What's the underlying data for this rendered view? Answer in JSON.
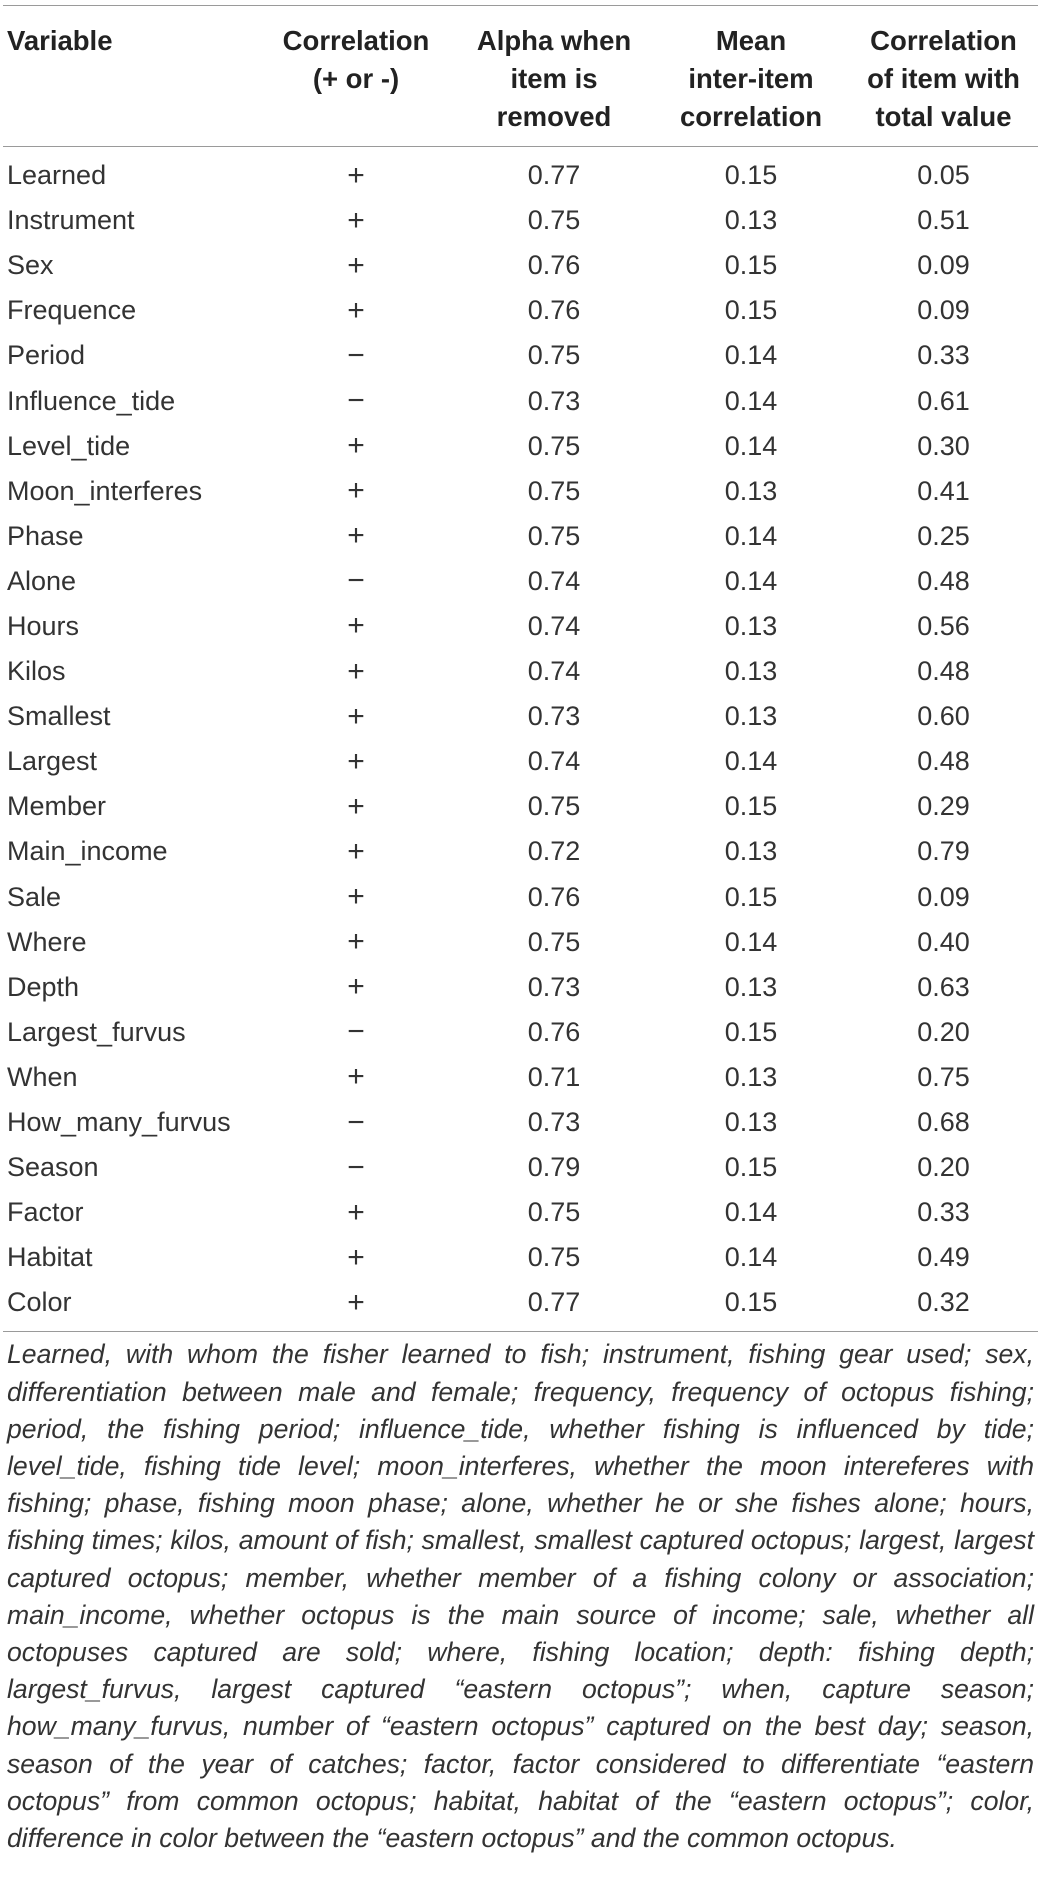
{
  "table": {
    "headers": [
      "Variable",
      "Correlation\n(+ or -)",
      "Alpha when\nitem is\nremoved",
      "Mean\ninter-item\ncorrelation",
      "Correlation\nof item with\ntotal value"
    ],
    "rows": [
      [
        "Learned",
        "+",
        "0.77",
        "0.15",
        "0.05"
      ],
      [
        "Instrument",
        "+",
        "0.75",
        "0.13",
        "0.51"
      ],
      [
        "Sex",
        "+",
        "0.76",
        "0.15",
        "0.09"
      ],
      [
        "Frequence",
        "+",
        "0.76",
        "0.15",
        "0.09"
      ],
      [
        "Period",
        "−",
        "0.75",
        "0.14",
        "0.33"
      ],
      [
        "Influence_tide",
        "−",
        "0.73",
        "0.14",
        "0.61"
      ],
      [
        "Level_tide",
        "+",
        "0.75",
        "0.14",
        "0.30"
      ],
      [
        "Moon_interferes",
        "+",
        "0.75",
        "0.13",
        "0.41"
      ],
      [
        "Phase",
        "+",
        "0.75",
        "0.14",
        "0.25"
      ],
      [
        "Alone",
        "−",
        "0.74",
        "0.14",
        "0.48"
      ],
      [
        "Hours",
        "+",
        "0.74",
        "0.13",
        "0.56"
      ],
      [
        "Kilos",
        "+",
        "0.74",
        "0.13",
        "0.48"
      ],
      [
        "Smallest",
        "+",
        "0.73",
        "0.13",
        "0.60"
      ],
      [
        "Largest",
        "+",
        "0.74",
        "0.14",
        "0.48"
      ],
      [
        "Member",
        "+",
        "0.75",
        "0.15",
        "0.29"
      ],
      [
        "Main_income",
        "+",
        "0.72",
        "0.13",
        "0.79"
      ],
      [
        "Sale",
        "+",
        "0.76",
        "0.15",
        "0.09"
      ],
      [
        "Where",
        "+",
        "0.75",
        "0.14",
        "0.40"
      ],
      [
        "Depth",
        "+",
        "0.73",
        "0.13",
        "0.63"
      ],
      [
        "Largest_furvus",
        "−",
        "0.76",
        "0.15",
        "0.20"
      ],
      [
        "When",
        "+",
        "0.71",
        "0.13",
        "0.75"
      ],
      [
        "How_many_furvus",
        "−",
        "0.73",
        "0.13",
        "0.68"
      ],
      [
        "Season",
        "−",
        "0.79",
        "0.15",
        "0.20"
      ],
      [
        "Factor",
        "+",
        "0.75",
        "0.14",
        "0.33"
      ],
      [
        "Habitat",
        "+",
        "0.75",
        "0.14",
        "0.49"
      ],
      [
        "Color",
        "+",
        "0.77",
        "0.15",
        "0.32"
      ]
    ]
  },
  "footnote": "Learned, with whom the fisher learned to fish; instrument, fishing gear used; sex, differentiation between male and female; frequency, frequency of octopus fishing; period, the fishing period; influence_tide, whether fishing is influenced by tide; level_tide, fishing tide level; moon_interferes, whether the moon intereferes with fishing; phase, fishing moon phase; alone, whether he or she fishes alone; hours, fishing times; kilos, amount of fish; smallest, smallest captured octopus; largest, largest captured octopus; member, whether member of a fishing colony or association; main_income, whether octopus is the main source of income; sale, whether all octopuses captured are sold; where, fishing location; depth: fishing depth; largest_furvus, largest captured “eastern octopus”; when, capture season; how_many_furvus, number of “eastern octopus” captured on the best day; season, season of the year of catches; factor, factor considered to differentiate “eastern octopus” from common octopus; habitat, habitat of the “eastern octopus”; color, difference in color between the “eastern octopus” and the common octopus."
}
